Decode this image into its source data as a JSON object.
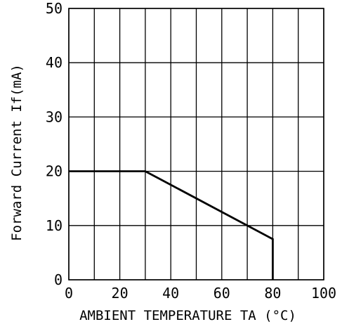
{
  "chart_data": {
    "type": "line",
    "title": "",
    "xlabel": "AMBIENT TEMPERATURE TA (°C)",
    "ylabel": "Forward Current If(mA)",
    "xlim": [
      0,
      100
    ],
    "ylim": [
      0,
      50
    ],
    "x_ticks": [
      "0",
      "20",
      "40",
      "60",
      "80",
      "100"
    ],
    "y_ticks": [
      "0",
      "10",
      "20",
      "30",
      "40",
      "50"
    ],
    "x_grid_step": 10,
    "y_grid_step": 10,
    "grid": true,
    "series": [
      {
        "x": [
          0,
          30,
          80,
          80
        ],
        "y": [
          20,
          20,
          7.5,
          0
        ]
      }
    ]
  }
}
